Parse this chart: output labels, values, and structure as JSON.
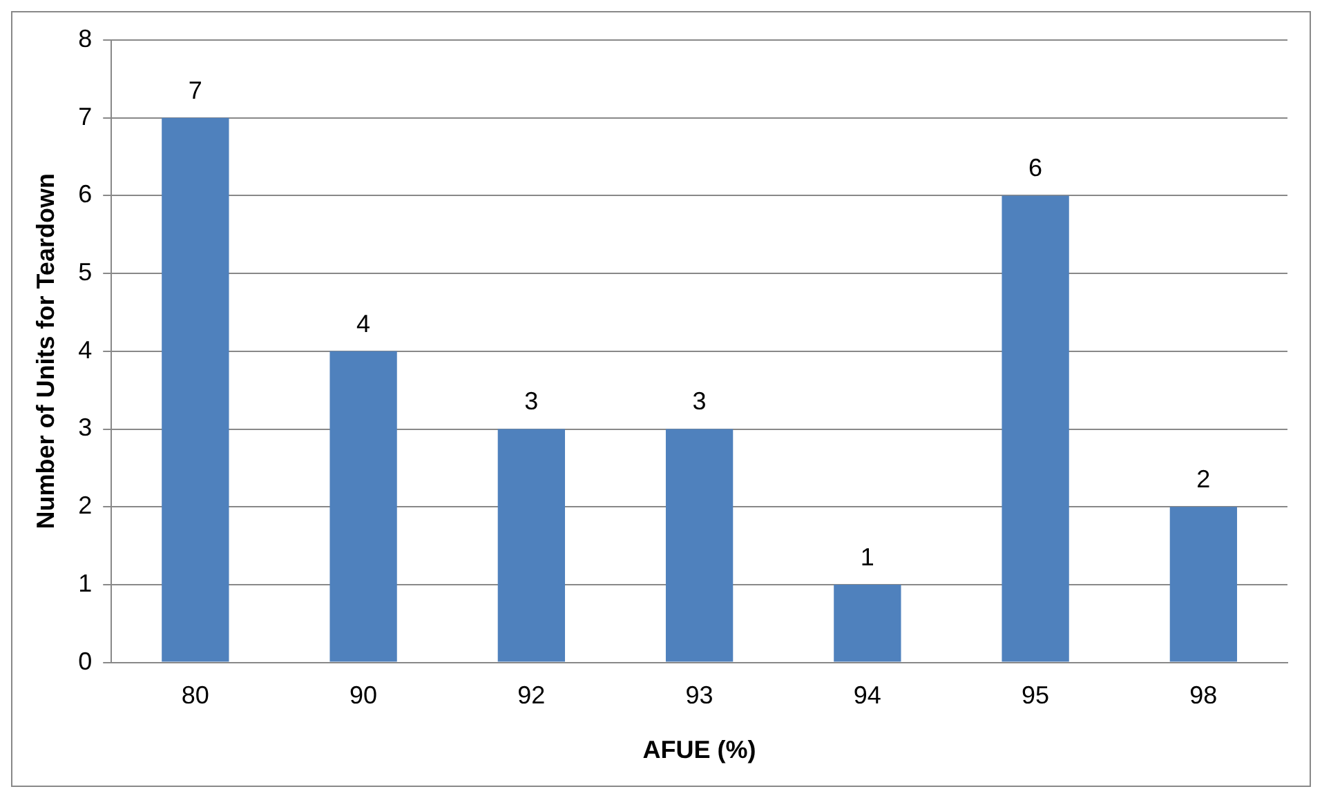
{
  "chart_data": {
    "type": "bar",
    "xlabel": "AFUE (%)",
    "ylabel": "Number of Units for Teardown",
    "categories": [
      "80",
      "90",
      "92",
      "93",
      "94",
      "95",
      "98"
    ],
    "values": [
      7,
      4,
      3,
      3,
      1,
      6,
      2
    ],
    "color": "#4f81bd",
    "ylim": [
      0,
      8
    ],
    "yticks": [
      0,
      1,
      2,
      3,
      4,
      5,
      6,
      7,
      8
    ],
    "grid": "y",
    "legend": false,
    "data_labels": true
  }
}
